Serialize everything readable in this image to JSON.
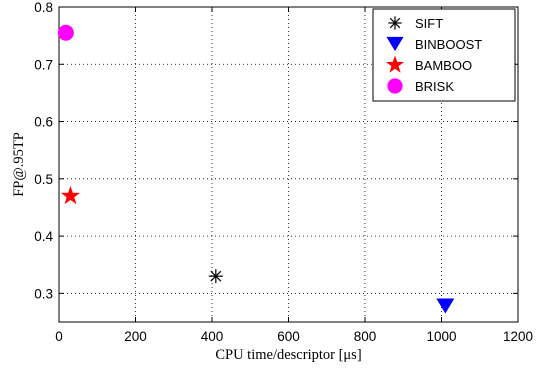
{
  "chart_data": {
    "type": "scatter",
    "title": "",
    "xlabel": "CPU time/descriptor [μs]",
    "ylabel": "FP@.95TP",
    "xlim": [
      0,
      1200
    ],
    "ylim": [
      0.25,
      0.8
    ],
    "xticks": [
      "0",
      "200",
      "400",
      "600",
      "800",
      "1000",
      "1200"
    ],
    "yticks": [
      "0.3",
      "0.4",
      "0.5",
      "0.6",
      "0.7",
      "0.8"
    ],
    "grid": true,
    "legend_position": "top-right",
    "series": [
      {
        "name": "SIFT",
        "x": 410,
        "y": 0.33,
        "marker": "asterisk",
        "color": "#000000"
      },
      {
        "name": "BINBOOST",
        "x": 1010,
        "y": 0.278,
        "marker": "triangle-down",
        "color": "#0000ff"
      },
      {
        "name": "BAMBOO",
        "x": 30,
        "y": 0.47,
        "marker": "star",
        "color": "#ff0000"
      },
      {
        "name": "BRISK",
        "x": 18,
        "y": 0.755,
        "marker": "circle",
        "color": "#ff00ff"
      }
    ]
  }
}
